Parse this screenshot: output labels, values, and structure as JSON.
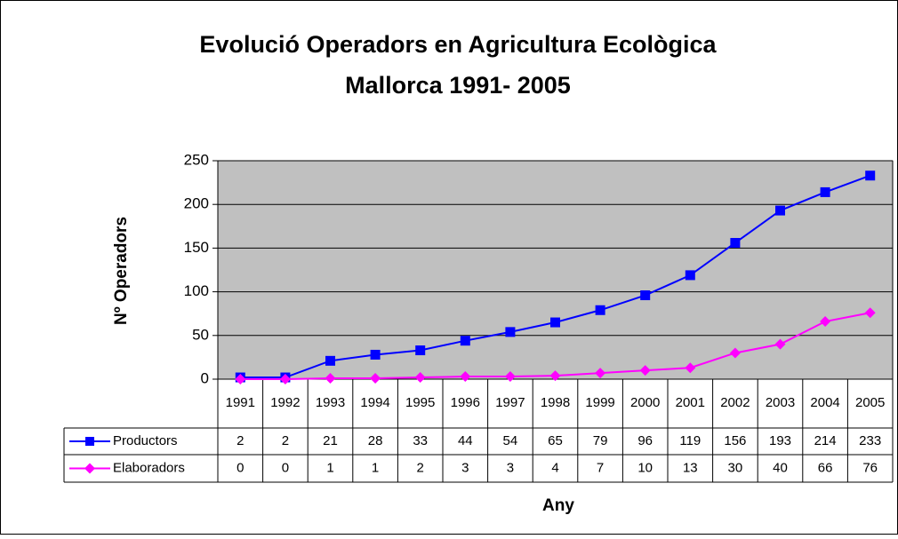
{
  "chart_data": {
    "type": "line",
    "title": [
      "Evolució Operadors en Agricultura Ecològica",
      "Mallorca 1991- 2005"
    ],
    "y_label": "Nº Operadors",
    "x_label": "Any",
    "categories": [
      "1991",
      "1992",
      "1993",
      "1994",
      "1995",
      "1996",
      "1997",
      "1998",
      "1999",
      "2000",
      "2001",
      "2002",
      "2003",
      "2004",
      "2005"
    ],
    "series": [
      {
        "name": "Productors",
        "color": "#0000ff",
        "values": [
          2,
          2,
          21,
          28,
          33,
          44,
          54,
          65,
          79,
          96,
          119,
          156,
          193,
          214,
          233
        ]
      },
      {
        "name": "Elaboradors",
        "color": "#ff00ff",
        "values": [
          0,
          0,
          1,
          1,
          2,
          3,
          3,
          4,
          7,
          10,
          13,
          30,
          40,
          66,
          76
        ]
      }
    ],
    "ylim": [
      0,
      250
    ],
    "yticks": [
      0,
      50,
      100,
      150,
      200,
      250
    ],
    "grid": true,
    "data_table": true
  }
}
